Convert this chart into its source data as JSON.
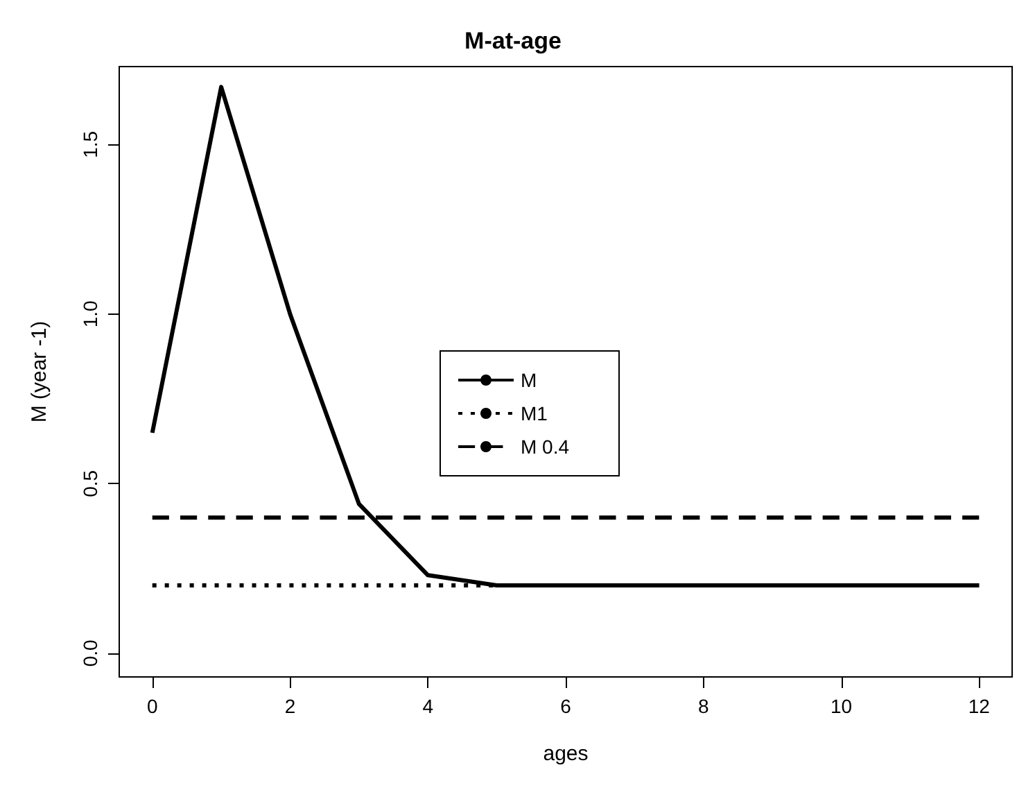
{
  "chart_data": {
    "type": "line",
    "title": "M-at-age",
    "xlabel": "ages",
    "ylabel": "M (year -1)",
    "x": [
      0,
      1,
      2,
      3,
      4,
      5,
      6,
      7,
      8,
      9,
      10,
      11,
      12
    ],
    "series": [
      {
        "name": "M",
        "color": "#000000",
        "line_style": "solid",
        "values": [
          0.65,
          1.67,
          1.0,
          0.44,
          0.23,
          0.2,
          0.2,
          0.2,
          0.2,
          0.2,
          0.2,
          0.2,
          0.2
        ]
      },
      {
        "name": "M1",
        "color": "#000000",
        "line_style": "dotted",
        "values": [
          0.2,
          0.2,
          0.2,
          0.2,
          0.2,
          0.2,
          0.2,
          0.2,
          0.2,
          0.2,
          0.2,
          0.2,
          0.2
        ]
      },
      {
        "name": "M 0.4",
        "color": "#000000",
        "line_style": "dashed",
        "values": [
          0.4,
          0.4,
          0.4,
          0.4,
          0.4,
          0.4,
          0.4,
          0.4,
          0.4,
          0.4,
          0.4,
          0.4,
          0.4
        ]
      }
    ],
    "xlim": [
      -0.48,
      12.48
    ],
    "xticks": [
      0,
      2,
      4,
      6,
      8,
      10,
      12
    ],
    "ylim": [
      -0.07,
      1.73
    ],
    "yticks": [
      {
        "value": 0,
        "label": "0.0"
      },
      {
        "value": 0.5,
        "label": "0.5"
      },
      {
        "value": 1,
        "label": "1.0"
      },
      {
        "value": 1.5,
        "label": "1.5"
      }
    ],
    "grid": false,
    "legend": "center",
    "marker": "none"
  }
}
